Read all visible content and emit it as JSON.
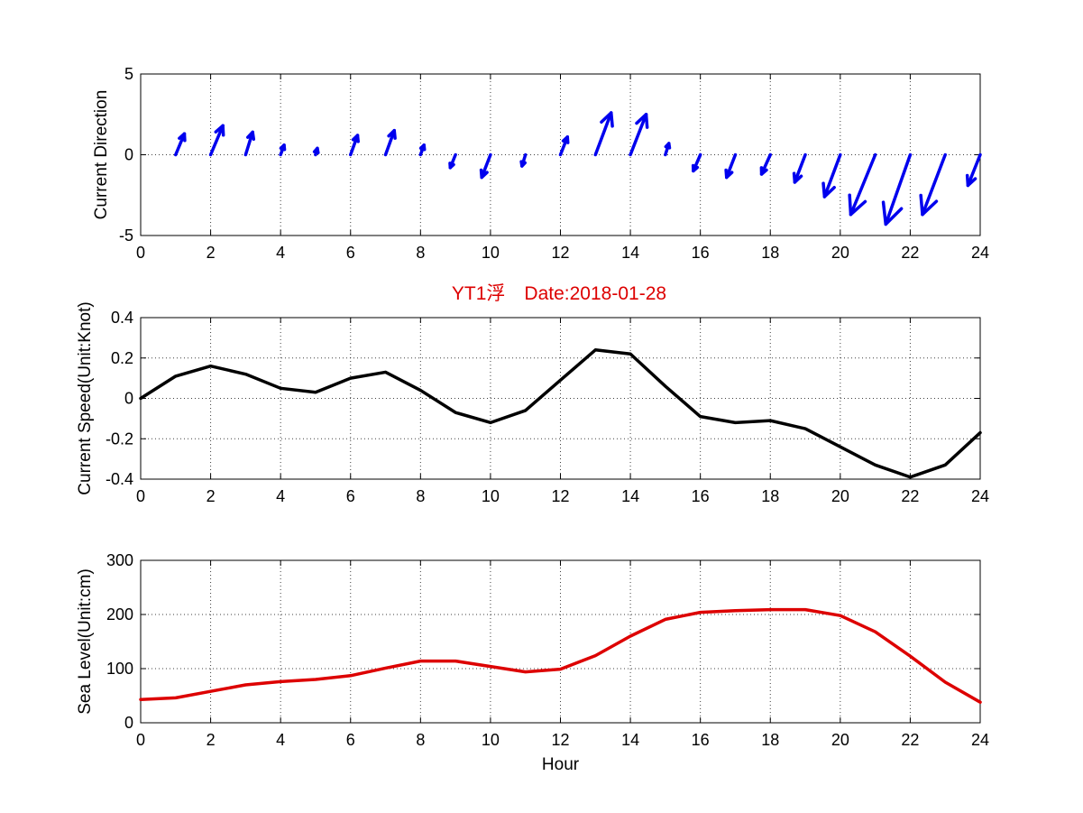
{
  "title": "YT1浮　Date:2018-01-28",
  "colors": {
    "arrows": "#0000ee",
    "speed_line": "#000000",
    "sea_level_line": "#dd0000",
    "title": "#dd0000"
  },
  "chart_data": [
    {
      "type": "quiver",
      "ylabel": "Current Direction",
      "xlim": [
        0,
        24
      ],
      "ylim": [
        -5,
        5
      ],
      "xticks": [
        0,
        2,
        4,
        6,
        8,
        10,
        12,
        14,
        16,
        18,
        20,
        22,
        24
      ],
      "yticks": [
        -5,
        0,
        5
      ],
      "grid": true,
      "arrows": [
        {
          "x": 1,
          "u": 0.25,
          "v": 1.3
        },
        {
          "x": 2,
          "u": 0.35,
          "v": 1.8
        },
        {
          "x": 3,
          "u": 0.2,
          "v": 1.4
        },
        {
          "x": 4,
          "u": 0.1,
          "v": 0.6
        },
        {
          "x": 5,
          "u": 0.05,
          "v": 0.4
        },
        {
          "x": 6,
          "u": 0.2,
          "v": 1.2
        },
        {
          "x": 7,
          "u": 0.25,
          "v": 1.5
        },
        {
          "x": 8,
          "u": 0.1,
          "v": 0.6
        },
        {
          "x": 9,
          "u": -0.15,
          "v": -0.8
        },
        {
          "x": 10,
          "u": -0.25,
          "v": -1.4
        },
        {
          "x": 11,
          "u": -0.1,
          "v": -0.7
        },
        {
          "x": 12,
          "u": 0.2,
          "v": 1.1
        },
        {
          "x": 13,
          "u": 0.45,
          "v": 2.6
        },
        {
          "x": 14,
          "u": 0.45,
          "v": 2.5
        },
        {
          "x": 15,
          "u": 0.1,
          "v": 0.7
        },
        {
          "x": 16,
          "u": -0.2,
          "v": -1.0
        },
        {
          "x": 17,
          "u": -0.25,
          "v": -1.4
        },
        {
          "x": 18,
          "u": -0.25,
          "v": -1.2
        },
        {
          "x": 19,
          "u": -0.3,
          "v": -1.7
        },
        {
          "x": 20,
          "u": -0.45,
          "v": -2.6
        },
        {
          "x": 21,
          "u": -0.7,
          "v": -3.7
        },
        {
          "x": 22,
          "u": -0.7,
          "v": -4.3
        },
        {
          "x": 23,
          "u": -0.65,
          "v": -3.7
        },
        {
          "x": 24,
          "u": -0.35,
          "v": -1.9
        }
      ]
    },
    {
      "type": "line",
      "ylabel": "Current Speed(Unit:Knot)",
      "xlim": [
        0,
        24
      ],
      "ylim": [
        -0.4,
        0.4
      ],
      "xticks": [
        0,
        2,
        4,
        6,
        8,
        10,
        12,
        14,
        16,
        18,
        20,
        22,
        24
      ],
      "yticks": [
        -0.4,
        -0.2,
        0,
        0.2,
        0.4
      ],
      "grid": true,
      "x": [
        0,
        1,
        2,
        3,
        4,
        5,
        6,
        7,
        8,
        9,
        10,
        11,
        12,
        13,
        14,
        15,
        16,
        17,
        18,
        19,
        20,
        21,
        22,
        23,
        24
      ],
      "y": [
        0,
        0.11,
        0.16,
        0.12,
        0.05,
        0.03,
        0.1,
        0.13,
        0.04,
        -0.07,
        -0.12,
        -0.06,
        0.09,
        0.24,
        0.22,
        0.06,
        -0.09,
        -0.12,
        -0.11,
        -0.15,
        -0.24,
        -0.33,
        -0.39,
        -0.33,
        -0.17
      ]
    },
    {
      "type": "line",
      "ylabel": "Sea Level(Unit:cm)",
      "xlabel": "Hour",
      "xlim": [
        0,
        24
      ],
      "ylim": [
        0,
        300
      ],
      "xticks": [
        0,
        2,
        4,
        6,
        8,
        10,
        12,
        14,
        16,
        18,
        20,
        22,
        24
      ],
      "yticks": [
        0,
        100,
        200,
        300
      ],
      "grid": true,
      "x": [
        0,
        1,
        2,
        3,
        4,
        5,
        6,
        7,
        8,
        9,
        10,
        11,
        12,
        13,
        14,
        15,
        16,
        17,
        18,
        19,
        20,
        21,
        22,
        23,
        24
      ],
      "y": [
        43,
        46,
        58,
        70,
        76,
        80,
        87,
        101,
        114,
        114,
        104,
        94,
        99,
        124,
        160,
        191,
        204,
        207,
        209,
        209,
        198,
        168,
        123,
        75,
        38
      ]
    }
  ]
}
